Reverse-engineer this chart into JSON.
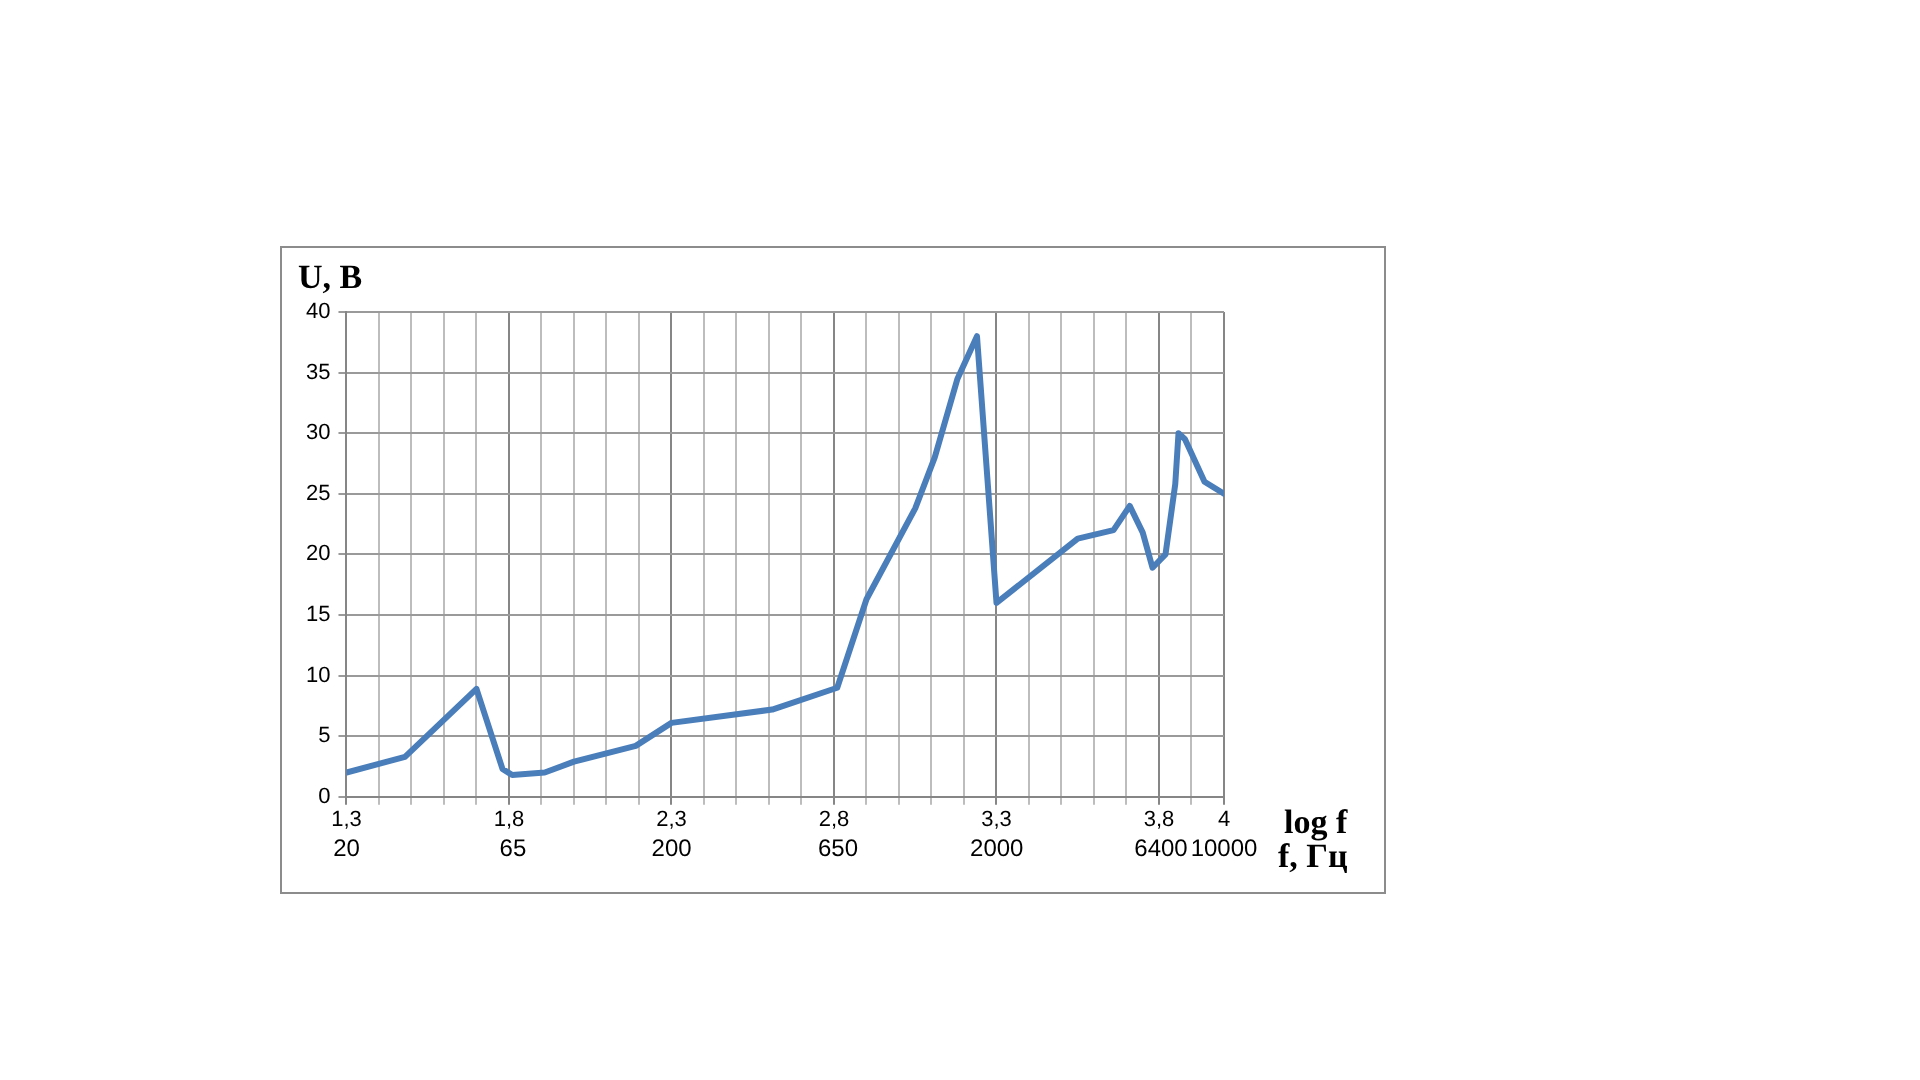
{
  "chart_data": {
    "type": "line",
    "ylabel": "U, B",
    "xlabel": "log f",
    "x2label": "f, Гц",
    "x": [
      1.3,
      1.48,
      1.7,
      1.78,
      1.81,
      1.91,
      2.0,
      2.19,
      2.3,
      2.61,
      2.81,
      2.9,
      3.05,
      3.11,
      3.18,
      3.24,
      3.3,
      3.55,
      3.66,
      3.71,
      3.75,
      3.78,
      3.82,
      3.85,
      3.86,
      3.88,
      3.94,
      4.0
    ],
    "series": [
      {
        "color": "#4a7ebb",
        "values": [
          2,
          3.3,
          8.9,
          2.3,
          1.8,
          2,
          2.9,
          4.2,
          6.1,
          7.2,
          9,
          16.3,
          23.8,
          28,
          34.5,
          38,
          16,
          21.3,
          22,
          24,
          21.8,
          18.9,
          20,
          25.8,
          30,
          29.5,
          26,
          25
        ]
      }
    ],
    "xlim": [
      1.3,
      4
    ],
    "xticks": [
      {
        "value": 1.3,
        "label": "1,3"
      },
      {
        "value": 1.4,
        "label": null
      },
      {
        "value": 1.5,
        "label": null
      },
      {
        "value": 1.6,
        "label": null
      },
      {
        "value": 1.7,
        "label": null
      },
      {
        "value": 1.8,
        "label": "1,8"
      },
      {
        "value": 1.9,
        "label": null
      },
      {
        "value": 2.0,
        "label": null
      },
      {
        "value": 2.1,
        "label": null
      },
      {
        "value": 2.2,
        "label": null
      },
      {
        "value": 2.3,
        "label": "2,3"
      },
      {
        "value": 2.4,
        "label": null
      },
      {
        "value": 2.5,
        "label": null
      },
      {
        "value": 2.6,
        "label": null
      },
      {
        "value": 2.7,
        "label": null
      },
      {
        "value": 2.8,
        "label": "2,8"
      },
      {
        "value": 2.9,
        "label": null
      },
      {
        "value": 3.0,
        "label": null
      },
      {
        "value": 3.1,
        "label": null
      },
      {
        "value": 3.2,
        "label": null
      },
      {
        "value": 3.3,
        "label": "3,3"
      },
      {
        "value": 3.4,
        "label": null
      },
      {
        "value": 3.5,
        "label": null
      },
      {
        "value": 3.6,
        "label": null
      },
      {
        "value": 3.7,
        "label": null
      },
      {
        "value": 3.8,
        "label": "3,8"
      },
      {
        "value": 3.9,
        "label": null
      },
      4
    ],
    "x2lim": [
      20,
      10000
    ],
    "log": "x2",
    "x2ticks": [
      20,
      65,
      200,
      650,
      2000,
      6400,
      10000
    ],
    "ylim": [
      0,
      40
    ],
    "yticks": [
      0,
      5,
      10,
      15,
      20,
      25,
      30,
      35,
      40
    ],
    "grid": true,
    "legend": false,
    "marker": "none",
    "line_style": "solid"
  }
}
